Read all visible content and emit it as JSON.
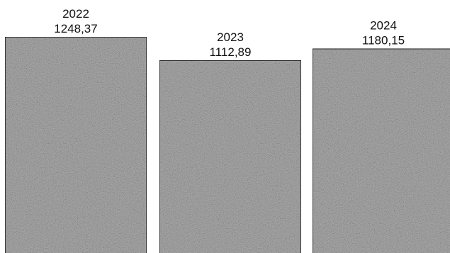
{
  "chart_data": {
    "type": "bar",
    "categories": [
      "2022",
      "2023",
      "2024"
    ],
    "values": [
      1248.37,
      1112.89,
      1180.15
    ],
    "value_labels": [
      "1248,37",
      "1112,89",
      "1180,15"
    ],
    "title": "",
    "xlabel": "",
    "ylabel": "",
    "ylim": [
      0,
      1248.37
    ],
    "grid": false,
    "legend": "none",
    "colors": {
      "bar_fill": "#a9a9a9",
      "bar_edge": "#1a1a1a"
    }
  }
}
